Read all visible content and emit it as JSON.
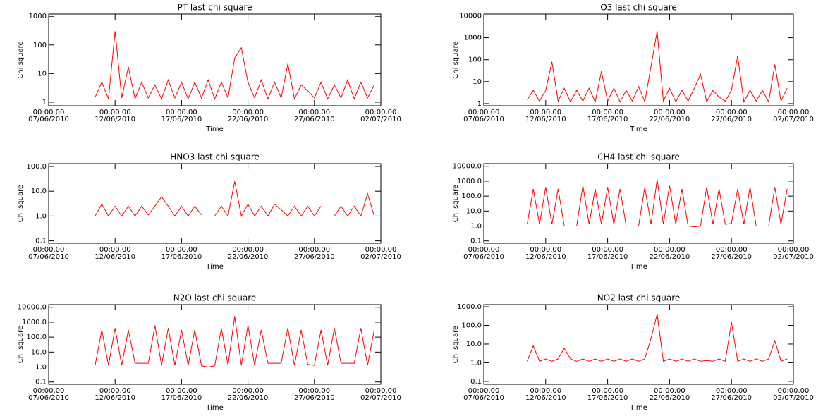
{
  "chart_data": [
    {
      "type": "line",
      "title": "PT last chi square",
      "xlabel": "Time",
      "ylabel": "Chi square",
      "color": "#ff0000",
      "log": true,
      "x": [
        "2010-06-10T12:00",
        "2010-06-11T00:00",
        "2010-06-11T12:00",
        "2010-06-12T00:00",
        "2010-06-12T12:00",
        "2010-06-13T00:00",
        "2010-06-13T12:00",
        "2010-06-14T00:00",
        "2010-06-14T12:00",
        "2010-06-15T00:00",
        "2010-06-15T12:00",
        "2010-06-16T00:00",
        "2010-06-16T12:00",
        "2010-06-17T00:00",
        "2010-06-17T12:00",
        "2010-06-18T00:00",
        "2010-06-18T12:00",
        "2010-06-19T00:00",
        "2010-06-19T12:00",
        "2010-06-20T00:00",
        "2010-06-20T12:00",
        "2010-06-21T00:00",
        "2010-06-21T12:00",
        "2010-06-22T00:00",
        "2010-06-22T12:00",
        "2010-06-23T00:00",
        "2010-06-23T12:00",
        "2010-06-24T00:00",
        "2010-06-24T12:00",
        "2010-06-25T00:00",
        "2010-06-25T12:00",
        "2010-06-26T00:00",
        "2010-06-26T12:00",
        "2010-06-27T00:00",
        "2010-06-27T12:00",
        "2010-06-28T00:00",
        "2010-06-28T12:00",
        "2010-06-29T00:00",
        "2010-06-29T12:00",
        "2010-06-30T00:00",
        "2010-06-30T12:00",
        "2010-07-01T00:00",
        "2010-07-01T12:00"
      ],
      "values": [
        1.5,
        5,
        1.3,
        300,
        1.4,
        17,
        1.3,
        5,
        1.4,
        4,
        1.3,
        6,
        1.4,
        5,
        1.3,
        5,
        1.4,
        6,
        1.3,
        5,
        1.4,
        35,
        80,
        5,
        1.4,
        6,
        1.3,
        5,
        1.4,
        22,
        1.3,
        4,
        2.5,
        1.4,
        5,
        1.3,
        4,
        1.4,
        6,
        1.3,
        5,
        1.4,
        4
      ],
      "xlim": [
        "2010-06-07T00:00",
        "2010-07-02T00:00"
      ],
      "xticks": [
        {
          "value": "2010-06-07T00:00",
          "label": [
            "00:00.00",
            "07/06/2010"
          ]
        },
        {
          "value": "2010-06-12T00:00",
          "label": [
            "00:00.00",
            "12/06/2010"
          ]
        },
        {
          "value": "2010-06-17T00:00",
          "label": [
            "00:00.00",
            "17/06/2010"
          ]
        },
        {
          "value": "2010-06-22T00:00",
          "label": [
            "00:00.00",
            "22/06/2010"
          ]
        },
        {
          "value": "2010-06-27T00:00",
          "label": [
            "00:00.00",
            "27/06/2010"
          ]
        },
        {
          "value": "2010-07-02T00:00",
          "label": [
            "00:00.00",
            "02/07/2010"
          ]
        }
      ],
      "ylim": [
        0.75,
        1200
      ],
      "yticks": [
        1,
        10,
        100,
        1000
      ]
    },
    {
      "type": "line",
      "title": "O3 last chi square",
      "xlabel": "Time",
      "ylabel": "Chi square",
      "color": "#ff0000",
      "log": true,
      "x": [
        "2010-06-10T12:00",
        "2010-06-11T00:00",
        "2010-06-11T12:00",
        "2010-06-12T00:00",
        "2010-06-12T12:00",
        "2010-06-13T00:00",
        "2010-06-13T12:00",
        "2010-06-14T00:00",
        "2010-06-14T12:00",
        "2010-06-15T00:00",
        "2010-06-15T12:00",
        "2010-06-16T00:00",
        "2010-06-16T12:00",
        "2010-06-17T00:00",
        "2010-06-17T12:00",
        "2010-06-18T00:00",
        "2010-06-18T12:00",
        "2010-06-19T00:00",
        "2010-06-19T12:00",
        "2010-06-20T00:00",
        "2010-06-20T12:00",
        "2010-06-21T00:00",
        "2010-06-21T12:00",
        "2010-06-22T00:00",
        "2010-06-22T12:00",
        "2010-06-23T00:00",
        "2010-06-23T12:00",
        "2010-06-24T00:00",
        "2010-06-24T12:00",
        "2010-06-25T00:00",
        "2010-06-25T12:00",
        "2010-06-26T00:00",
        "2010-06-26T12:00",
        "2010-06-27T00:00",
        "2010-06-27T12:00",
        "2010-06-28T00:00",
        "2010-06-28T12:00",
        "2010-06-29T00:00",
        "2010-06-29T12:00",
        "2010-06-30T00:00",
        "2010-06-30T12:00",
        "2010-07-01T00:00",
        "2010-07-01T12:00"
      ],
      "values": [
        1.5,
        4,
        1.3,
        4,
        80,
        1.3,
        5,
        1.2,
        4,
        1.3,
        5,
        1.2,
        30,
        1.3,
        5,
        1.2,
        4,
        1.3,
        6,
        1.2,
        50,
        2000,
        1.3,
        5,
        1.2,
        4,
        1.3,
        5,
        22,
        1.2,
        4,
        2,
        1.3,
        4,
        150,
        1.2,
        4,
        1.3,
        4,
        1.2,
        60,
        1.3,
        5
      ],
      "xlim": [
        "2010-06-07T00:00",
        "2010-07-02T00:00"
      ],
      "xticks": [
        {
          "value": "2010-06-07T00:00",
          "label": [
            "00:00.00",
            "07/06/2010"
          ]
        },
        {
          "value": "2010-06-12T00:00",
          "label": [
            "00:00.00",
            "12/06/2010"
          ]
        },
        {
          "value": "2010-06-17T00:00",
          "label": [
            "00:00.00",
            "17/06/2010"
          ]
        },
        {
          "value": "2010-06-22T00:00",
          "label": [
            "00:00.00",
            "22/06/2010"
          ]
        },
        {
          "value": "2010-06-27T00:00",
          "label": [
            "00:00.00",
            "27/06/2010"
          ]
        },
        {
          "value": "2010-07-02T00:00",
          "label": [
            "00:00.00",
            "02/07/2010"
          ]
        }
      ],
      "ylim": [
        0.8,
        12000
      ],
      "yticks": [
        1,
        10,
        100,
        1000,
        10000
      ]
    },
    {
      "type": "line",
      "title": "HNO3 last chi square",
      "xlabel": "Time",
      "ylabel": "Chi square",
      "color": "#ff0000",
      "log": true,
      "x": [
        "2010-06-10T12:00",
        "2010-06-11T00:00",
        "2010-06-11T12:00",
        "2010-06-12T00:00",
        "2010-06-12T12:00",
        "2010-06-13T00:00",
        "2010-06-13T12:00",
        "2010-06-14T00:00",
        "2010-06-14T12:00",
        "2010-06-15T00:00",
        "2010-06-15T12:00",
        "2010-06-16T00:00",
        "2010-06-16T12:00",
        "2010-06-17T00:00",
        "2010-06-17T12:00",
        "2010-06-18T00:00",
        "2010-06-18T12:00",
        "2010-06-19T00:00",
        "2010-06-19T12:00",
        "2010-06-20T00:00",
        "2010-06-20T12:00",
        "2010-06-21T00:00",
        "2010-06-21T12:00",
        "2010-06-22T00:00",
        "2010-06-22T12:00",
        "2010-06-23T00:00",
        "2010-06-23T12:00",
        "2010-06-24T00:00",
        "2010-06-24T12:00",
        "2010-06-25T00:00",
        "2010-06-25T12:00",
        "2010-06-26T00:00",
        "2010-06-26T12:00",
        "2010-06-27T00:00",
        "2010-06-27T12:00",
        "2010-06-28T00:00",
        "2010-06-28T12:00",
        "2010-06-29T00:00",
        "2010-06-29T12:00",
        "2010-06-30T00:00",
        "2010-06-30T12:00",
        "2010-07-01T00:00",
        "2010-07-01T12:00"
      ],
      "values": [
        1,
        3,
        1,
        2.5,
        1,
        2.5,
        1,
        2.5,
        1.1,
        2.5,
        6,
        2.5,
        1,
        2.5,
        1,
        2.5,
        1.1,
        null,
        1,
        2.5,
        1,
        25,
        1,
        3,
        1,
        2.5,
        1,
        3,
        1.8,
        1,
        2.5,
        1,
        2.5,
        1,
        2.5,
        null,
        1,
        2.5,
        1,
        2.5,
        1,
        8,
        1
      ],
      "xlim": [
        "2010-06-07T00:00",
        "2010-07-02T00:00"
      ],
      "xticks": [
        {
          "value": "2010-06-07T00:00",
          "label": [
            "00:00.00",
            "07/06/2010"
          ]
        },
        {
          "value": "2010-06-12T00:00",
          "label": [
            "00:00.00",
            "12/06/2010"
          ]
        },
        {
          "value": "2010-06-17T00:00",
          "label": [
            "00:00.00",
            "17/06/2010"
          ]
        },
        {
          "value": "2010-06-22T00:00",
          "label": [
            "00:00.00",
            "22/06/2010"
          ]
        },
        {
          "value": "2010-06-27T00:00",
          "label": [
            "00:00.00",
            "27/06/2010"
          ]
        },
        {
          "value": "2010-07-02T00:00",
          "label": [
            "00:00.00",
            "02/07/2010"
          ]
        }
      ],
      "ylim": [
        0.08,
        130
      ],
      "yticks": [
        0.1,
        {
          "value": 1,
          "label": "1.0"
        },
        {
          "value": 10,
          "label": "10.0"
        },
        {
          "value": 100,
          "label": "100.0"
        }
      ]
    },
    {
      "type": "line",
      "title": "CH4 last chi square",
      "xlabel": "Time",
      "ylabel": "Chi square",
      "color": "#ff0000",
      "log": true,
      "x": [
        "2010-06-10T12:00",
        "2010-06-11T00:00",
        "2010-06-11T12:00",
        "2010-06-12T00:00",
        "2010-06-12T12:00",
        "2010-06-13T00:00",
        "2010-06-13T12:00",
        "2010-06-14T00:00",
        "2010-06-14T12:00",
        "2010-06-15T00:00",
        "2010-06-15T12:00",
        "2010-06-16T00:00",
        "2010-06-16T12:00",
        "2010-06-17T00:00",
        "2010-06-17T12:00",
        "2010-06-18T00:00",
        "2010-06-18T12:00",
        "2010-06-19T00:00",
        "2010-06-19T12:00",
        "2010-06-20T00:00",
        "2010-06-20T12:00",
        "2010-06-21T00:00",
        "2010-06-21T12:00",
        "2010-06-22T00:00",
        "2010-06-22T12:00",
        "2010-06-23T00:00",
        "2010-06-23T12:00",
        "2010-06-24T00:00",
        "2010-06-24T12:00",
        "2010-06-25T00:00",
        "2010-06-25T12:00",
        "2010-06-26T00:00",
        "2010-06-26T12:00",
        "2010-06-27T00:00",
        "2010-06-27T12:00",
        "2010-06-28T00:00",
        "2010-06-28T12:00",
        "2010-06-29T00:00",
        "2010-06-29T12:00",
        "2010-06-30T00:00",
        "2010-06-30T12:00",
        "2010-07-01T00:00",
        "2010-07-01T12:00"
      ],
      "values": [
        1.3,
        300,
        1.3,
        400,
        1.3,
        300,
        1,
        1,
        1,
        500,
        1.3,
        300,
        1.3,
        400,
        1.3,
        300,
        1,
        1,
        1,
        400,
        1.3,
        1300,
        1.3,
        500,
        1.3,
        300,
        1,
        0.9,
        1,
        400,
        1.3,
        300,
        1.3,
        1.5,
        300,
        1.3,
        400,
        1,
        1,
        1,
        400,
        1.3,
        300
      ],
      "xlim": [
        "2010-06-07T00:00",
        "2010-07-02T00:00"
      ],
      "xticks": [
        {
          "value": "2010-06-07T00:00",
          "label": [
            "00:00.00",
            "07/06/2010"
          ]
        },
        {
          "value": "2010-06-12T00:00",
          "label": [
            "00:00.00",
            "12/06/2010"
          ]
        },
        {
          "value": "2010-06-17T00:00",
          "label": [
            "00:00.00",
            "17/06/2010"
          ]
        },
        {
          "value": "2010-06-22T00:00",
          "label": [
            "00:00.00",
            "22/06/2010"
          ]
        },
        {
          "value": "2010-06-27T00:00",
          "label": [
            "00:00.00",
            "27/06/2010"
          ]
        },
        {
          "value": "2010-07-02T00:00",
          "label": [
            "00:00.00",
            "02/07/2010"
          ]
        }
      ],
      "ylim": [
        0.07,
        15000
      ],
      "yticks": [
        0.1,
        {
          "value": 1,
          "label": "1.0"
        },
        {
          "value": 10,
          "label": "10.0"
        },
        {
          "value": 100,
          "label": "100.0"
        },
        {
          "value": 1000,
          "label": "1000.0"
        },
        {
          "value": 10000,
          "label": "10000.0"
        }
      ]
    },
    {
      "type": "line",
      "title": "N2O last chi square",
      "xlabel": "Time",
      "ylabel": "Chi square",
      "color": "#ff0000",
      "log": true,
      "x": [
        "2010-06-10T12:00",
        "2010-06-11T00:00",
        "2010-06-11T12:00",
        "2010-06-12T00:00",
        "2010-06-12T12:00",
        "2010-06-13T00:00",
        "2010-06-13T12:00",
        "2010-06-14T00:00",
        "2010-06-14T12:00",
        "2010-06-15T00:00",
        "2010-06-15T12:00",
        "2010-06-16T00:00",
        "2010-06-16T12:00",
        "2010-06-17T00:00",
        "2010-06-17T12:00",
        "2010-06-18T00:00",
        "2010-06-18T12:00",
        "2010-06-19T00:00",
        "2010-06-19T12:00",
        "2010-06-20T00:00",
        "2010-06-20T12:00",
        "2010-06-21T00:00",
        "2010-06-21T12:00",
        "2010-06-22T00:00",
        "2010-06-22T12:00",
        "2010-06-23T00:00",
        "2010-06-23T12:00",
        "2010-06-24T00:00",
        "2010-06-24T12:00",
        "2010-06-25T00:00",
        "2010-06-25T12:00",
        "2010-06-26T00:00",
        "2010-06-26T12:00",
        "2010-06-27T00:00",
        "2010-06-27T12:00",
        "2010-06-28T00:00",
        "2010-06-28T12:00",
        "2010-06-29T00:00",
        "2010-06-29T12:00",
        "2010-06-30T00:00",
        "2010-06-30T12:00",
        "2010-07-01T00:00",
        "2010-07-01T12:00"
      ],
      "values": [
        1.3,
        300,
        1.3,
        400,
        1.3,
        300,
        1.8,
        1.8,
        1.8,
        600,
        1.3,
        400,
        1.3,
        300,
        1.3,
        300,
        1.2,
        1,
        1.2,
        400,
        1.3,
        2500,
        1.3,
        600,
        1.3,
        300,
        1.8,
        1.8,
        1.8,
        400,
        1.3,
        300,
        1.5,
        1.3,
        300,
        1.3,
        400,
        1.8,
        1.8,
        1.8,
        400,
        1.3,
        300
      ],
      "xlim": [
        "2010-06-07T00:00",
        "2010-07-02T00:00"
      ],
      "xticks": [
        {
          "value": "2010-06-07T00:00",
          "label": [
            "00:00.00",
            "07/06/2010"
          ]
        },
        {
          "value": "2010-06-12T00:00",
          "label": [
            "00:00.00",
            "12/06/2010"
          ]
        },
        {
          "value": "2010-06-17T00:00",
          "label": [
            "00:00.00",
            "17/06/2010"
          ]
        },
        {
          "value": "2010-06-22T00:00",
          "label": [
            "00:00.00",
            "22/06/2010"
          ]
        },
        {
          "value": "2010-06-27T00:00",
          "label": [
            "00:00.00",
            "27/06/2010"
          ]
        },
        {
          "value": "2010-07-02T00:00",
          "label": [
            "00:00.00",
            "02/07/2010"
          ]
        }
      ],
      "ylim": [
        0.07,
        15000
      ],
      "yticks": [
        0.1,
        {
          "value": 1,
          "label": "1.0"
        },
        {
          "value": 10,
          "label": "10.0"
        },
        {
          "value": 100,
          "label": "100.0"
        },
        {
          "value": 1000,
          "label": "1000.0"
        },
        {
          "value": 10000,
          "label": "10000.0"
        }
      ]
    },
    {
      "type": "line",
      "title": "NO2 last chi square",
      "xlabel": "Time",
      "ylabel": "Chi square",
      "color": "#ff0000",
      "log": true,
      "x": [
        "2010-06-10T12:00",
        "2010-06-11T00:00",
        "2010-06-11T12:00",
        "2010-06-12T00:00",
        "2010-06-12T12:00",
        "2010-06-13T00:00",
        "2010-06-13T12:00",
        "2010-06-14T00:00",
        "2010-06-14T12:00",
        "2010-06-15T00:00",
        "2010-06-15T12:00",
        "2010-06-16T00:00",
        "2010-06-16T12:00",
        "2010-06-17T00:00",
        "2010-06-17T12:00",
        "2010-06-18T00:00",
        "2010-06-18T12:00",
        "2010-06-19T00:00",
        "2010-06-19T12:00",
        "2010-06-20T00:00",
        "2010-06-20T12:00",
        "2010-06-21T00:00",
        "2010-06-21T12:00",
        "2010-06-22T00:00",
        "2010-06-22T12:00",
        "2010-06-23T00:00",
        "2010-06-23T12:00",
        "2010-06-24T00:00",
        "2010-06-24T12:00",
        "2010-06-25T00:00",
        "2010-06-25T12:00",
        "2010-06-26T00:00",
        "2010-06-26T12:00",
        "2010-06-27T00:00",
        "2010-06-27T12:00",
        "2010-06-28T00:00",
        "2010-06-28T12:00",
        "2010-06-29T00:00",
        "2010-06-29T12:00",
        "2010-06-30T00:00",
        "2010-06-30T12:00",
        "2010-07-01T00:00",
        "2010-07-01T12:00"
      ],
      "values": [
        1.2,
        8,
        1.2,
        1.6,
        1.2,
        1.6,
        6,
        1.6,
        1.2,
        1.6,
        1.2,
        1.6,
        1.2,
        1.6,
        1.2,
        1.6,
        1.2,
        1.6,
        1.2,
        1.6,
        20,
        400,
        1.2,
        1.6,
        1.2,
        1.6,
        1.2,
        1.6,
        1.2,
        1.3,
        1.2,
        1.6,
        1.2,
        150,
        1.2,
        1.6,
        1.2,
        1.6,
        1.2,
        1.6,
        15,
        1.2,
        1.6
      ],
      "xlim": [
        "2010-06-07T00:00",
        "2010-07-02T00:00"
      ],
      "xticks": [
        {
          "value": "2010-06-07T00:00",
          "label": [
            "00:00.00",
            "07/06/2010"
          ]
        },
        {
          "value": "2010-06-12T00:00",
          "label": [
            "00:00.00",
            "12/06/2010"
          ]
        },
        {
          "value": "2010-06-17T00:00",
          "label": [
            "00:00.00",
            "17/06/2010"
          ]
        },
        {
          "value": "2010-06-22T00:00",
          "label": [
            "00:00.00",
            "22/06/2010"
          ]
        },
        {
          "value": "2010-06-27T00:00",
          "label": [
            "00:00.00",
            "27/06/2010"
          ]
        },
        {
          "value": "2010-07-02T00:00",
          "label": [
            "00:00.00",
            "02/07/2010"
          ]
        }
      ],
      "ylim": [
        0.07,
        1300
      ],
      "yticks": [
        0.1,
        {
          "value": 1,
          "label": "1.0"
        },
        {
          "value": 10,
          "label": "10.0"
        },
        {
          "value": 100,
          "label": "100.0"
        },
        {
          "value": 1000,
          "label": "1000.0"
        }
      ]
    }
  ]
}
